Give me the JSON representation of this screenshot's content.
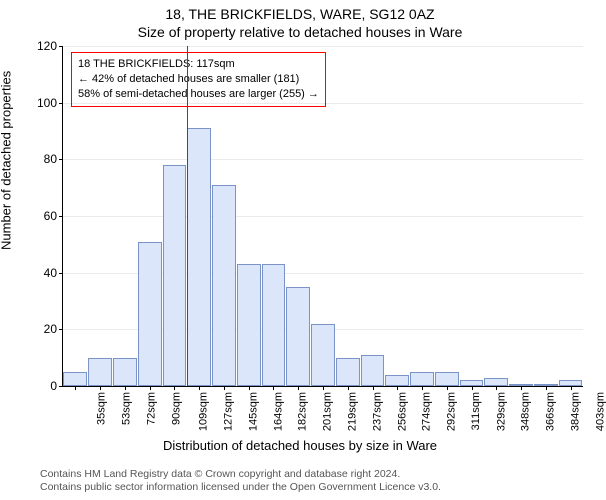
{
  "title1": "18, THE BRICKFIELDS, WARE, SG12 0AZ",
  "title2": "Size of property relative to detached houses in Ware",
  "y_label": "Number of detached properties",
  "x_label": "Distribution of detached houses by size in Ware",
  "credits_line1": "Contains HM Land Registry data © Crown copyright and database right 2024.",
  "credits_line2": "Contains public sector information licensed under the Open Government Licence v3.0.",
  "chart": {
    "type": "histogram",
    "ylim": [
      0,
      120
    ],
    "yticks": [
      0,
      20,
      40,
      60,
      80,
      100,
      120
    ],
    "x_categories": [
      "35sqm",
      "53sqm",
      "72sqm",
      "90sqm",
      "109sqm",
      "127sqm",
      "145sqm",
      "164sqm",
      "182sqm",
      "201sqm",
      "219sqm",
      "237sqm",
      "256sqm",
      "274sqm",
      "292sqm",
      "311sqm",
      "329sqm",
      "348sqm",
      "366sqm",
      "384sqm",
      "403sqm"
    ],
    "values": [
      5,
      10,
      10,
      51,
      78,
      91,
      71,
      43,
      43,
      35,
      22,
      10,
      11,
      4,
      5,
      5,
      2,
      3,
      0,
      0,
      2
    ],
    "bar_fill": "#dbe6fb",
    "bar_stroke": "#7a94c8",
    "background_color": "#ffffff",
    "grid_color": "#000000",
    "xtick_fontsize": 11,
    "ytick_fontsize": 12,
    "title_fontsize": 14,
    "label_fontsize": 13,
    "reference_line": {
      "category_index": 5,
      "color": "#ff0000",
      "width": 1.5
    }
  },
  "callout": {
    "line1": "18 THE BRICKFIELDS: 117sqm",
    "line2": "← 42% of detached houses are smaller (181)",
    "line3": "58% of semi-detached houses are larger (255) →",
    "border_color": "#ff0000",
    "fontsize": 11
  }
}
